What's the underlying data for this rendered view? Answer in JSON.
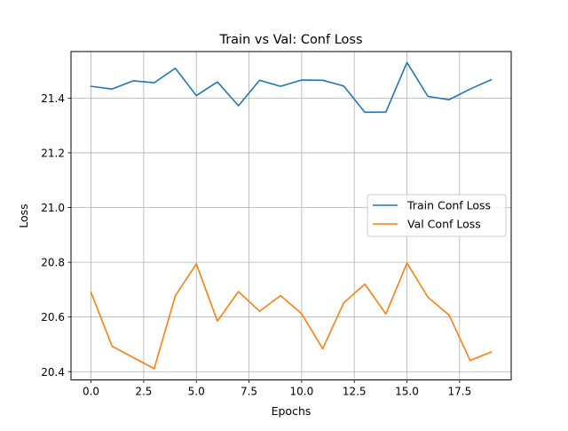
{
  "chart_data": {
    "type": "line",
    "title": "Train vs Val: Conf Loss",
    "xlabel": "Epochs",
    "ylabel": "Loss",
    "xlim": [
      -0.95,
      19.95
    ],
    "ylim": [
      20.37,
      21.57
    ],
    "xticks": [
      0.0,
      2.5,
      5.0,
      7.5,
      10.0,
      12.5,
      15.0,
      17.5
    ],
    "xtick_labels": [
      "0.0",
      "2.5",
      "5.0",
      "7.5",
      "10.0",
      "12.5",
      "15.0",
      "17.5"
    ],
    "yticks": [
      20.4,
      20.6,
      20.8,
      21.0,
      21.2,
      21.4
    ],
    "ytick_labels": [
      "20.4",
      "20.6",
      "20.8",
      "21.0",
      "21.2",
      "21.4"
    ],
    "grid": true,
    "legend_position": "center-right",
    "x": [
      0,
      1,
      2,
      3,
      4,
      5,
      6,
      7,
      8,
      9,
      10,
      11,
      12,
      13,
      14,
      15,
      16,
      17,
      18,
      19
    ],
    "series": [
      {
        "name": "Train Conf Loss",
        "color": "#1f77b4",
        "values": [
          21.443,
          21.433,
          21.463,
          21.456,
          21.509,
          21.409,
          21.459,
          21.372,
          21.465,
          21.443,
          21.466,
          21.465,
          21.444,
          21.348,
          21.349,
          21.53,
          21.406,
          21.394,
          21.433,
          21.467
        ]
      },
      {
        "name": "Val Conf Loss",
        "color": "#ff7f0e",
        "values": [
          20.69,
          20.493,
          20.452,
          20.411,
          20.677,
          20.794,
          20.585,
          20.693,
          20.621,
          20.678,
          20.612,
          20.484,
          20.652,
          20.72,
          20.611,
          20.797,
          20.672,
          20.607,
          20.441,
          20.472
        ]
      }
    ]
  }
}
